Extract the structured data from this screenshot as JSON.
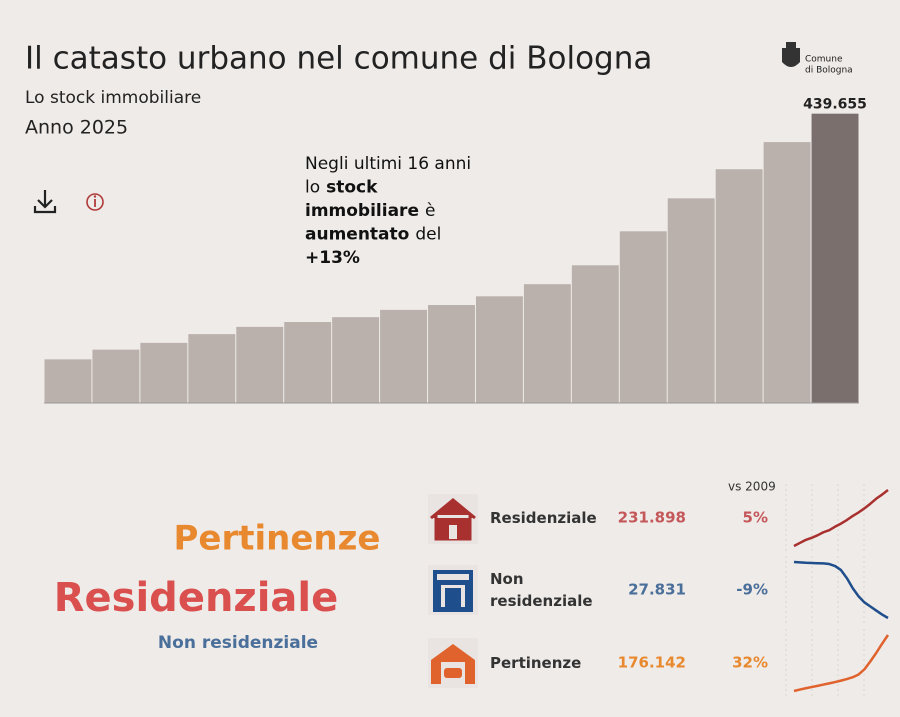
{
  "header": {
    "title": "Il catasto urbano nel comune di Bologna",
    "subtitle": "Lo stock immobiliare",
    "year_label": "Anno 2025",
    "logo": [
      "Comune",
      "di Bologna"
    ]
  },
  "chart_data": {
    "type": "bar",
    "values": [
      389000,
      391000,
      392400,
      394200,
      395700,
      396700,
      397700,
      399200,
      400200,
      402000,
      404500,
      408400,
      415400,
      422200,
      428200,
      433800,
      439655
    ],
    "value_labels": [
      null,
      null,
      null,
      null,
      null,
      null,
      null,
      null,
      null,
      null,
      null,
      null,
      null,
      null,
      null,
      null,
      "439.655"
    ],
    "colors": [
      "#bab1ad",
      "#bab1ad",
      "#bab1ad",
      "#bab1ad",
      "#bab1ad",
      "#bab1ad",
      "#bab1ad",
      "#bab1ad",
      "#bab1ad",
      "#bab1ad",
      "#bab1ad",
      "#bab1ad",
      "#bab1ad",
      "#bab1ad",
      "#bab1ad",
      "#bab1ad",
      "#7a6f6d"
    ],
    "ylim": [
      380000,
      440000
    ],
    "annotation": [
      [
        {
          "text": "Negli ultimi 16 anni",
          "bold": false
        }
      ],
      [
        {
          "text": "lo",
          "bold": false
        },
        {
          "text": "stock",
          "bold": true
        }
      ],
      [
        {
          "text": "immobiliare",
          "bold": true
        },
        {
          "text": "è",
          "bold": false
        }
      ],
      [
        {
          "text": "aumentato",
          "bold": true
        },
        {
          "text": "del",
          "bold": false
        }
      ],
      [
        {
          "text": "+13%",
          "bold": true
        }
      ]
    ]
  },
  "word_cloud": [
    {
      "text": "Pertinenze",
      "color": "#e8892f"
    },
    {
      "text": "Residenziale",
      "color": "#d9504f"
    },
    {
      "text": "Non residenziale",
      "color": "#4a6f9a"
    }
  ],
  "breakdown": {
    "header": "vs 2009",
    "rows": [
      {
        "name": "Residenziale",
        "value": "231.898",
        "change": "5%",
        "color": "#c4575a",
        "line_color": "#a8302e",
        "trend": [
          220900,
          221500,
          222100,
          222500,
          223000,
          223600,
          224000,
          224700,
          225300,
          226000,
          226800,
          227500,
          228300,
          229200,
          230200,
          231000,
          231898
        ]
      },
      {
        "name": "Non residenziale",
        "value": "27.831",
        "change": "-9%",
        "color": "#4a6f9a",
        "line_color": "#1f4e8c",
        "trend": [
          30600,
          30580,
          30560,
          30550,
          30540,
          30530,
          30500,
          30400,
          30200,
          29800,
          29300,
          28900,
          28600,
          28400,
          28200,
          28000,
          27831
        ]
      },
      {
        "name": "Pertinenze",
        "value": "176.142",
        "change": "32%",
        "color": "#e8892f",
        "line_color": "#e0622d",
        "trend": [
          133400,
          134500,
          135500,
          136400,
          137300,
          138300,
          139200,
          140200,
          141300,
          142500,
          143900,
          146000,
          150000,
          156000,
          162500,
          169500,
          176142
        ]
      }
    ]
  }
}
